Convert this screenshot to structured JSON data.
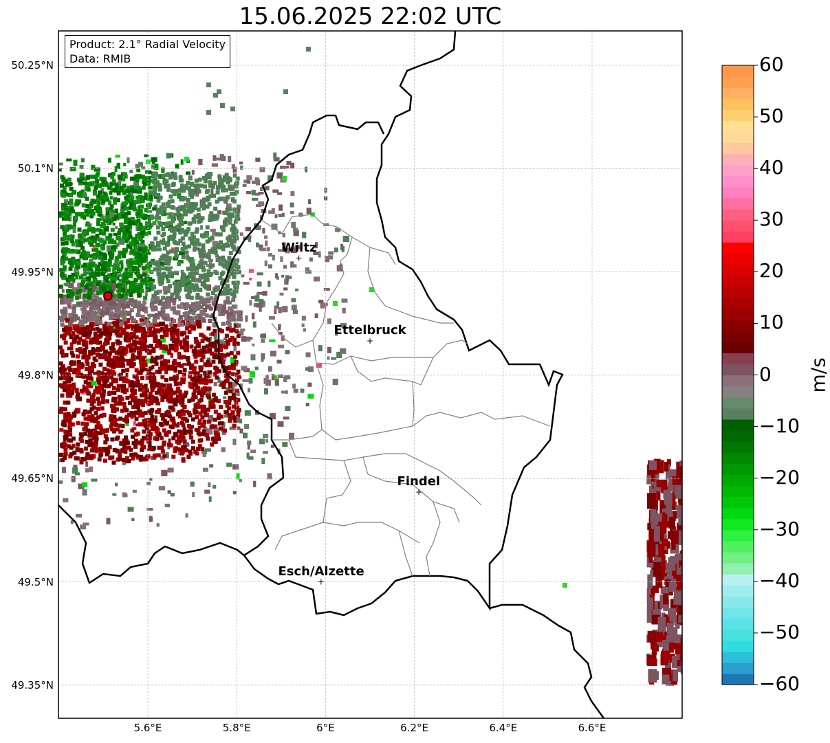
{
  "title": "15.06.2025 22:02 UTC",
  "info": {
    "product": "Product: 2.1° Radial Velocity",
    "data": "Data: RMIB"
  },
  "lat_ticks": [
    "50.25°N",
    "50.1°N",
    "49.95°N",
    "49.8°N",
    "49.65°N",
    "49.5°N",
    "49.35°N"
  ],
  "lon_ticks": [
    "5.6°E",
    "5.8°E",
    "6°E",
    "6.2°E",
    "6.4°E",
    "6.6°E"
  ],
  "cities": [
    {
      "name": "Wiltz",
      "lon": 5.94,
      "lat": 49.97
    },
    {
      "name": "Ettelbruck",
      "lon": 6.1,
      "lat": 49.85
    },
    {
      "name": "Findel",
      "lon": 6.21,
      "lat": 49.63
    },
    {
      "name": "Esch/Alzette",
      "lon": 5.99,
      "lat": 49.5
    }
  ],
  "radar_site": {
    "lon": 5.51,
    "lat": 49.915
  },
  "colorbar": {
    "label": "m/s",
    "min": -60,
    "max": 60,
    "ticks": [
      "60",
      "50",
      "40",
      "30",
      "20",
      "10",
      "0",
      "−10",
      "−20",
      "−30",
      "−40",
      "−50",
      "−60"
    ],
    "colors": [
      "#1f77b4",
      "#2a9fd0",
      "#2bc0d8",
      "#30dde0",
      "#48e0e0",
      "#5ae2e4",
      "#70e5e8",
      "#88e8ec",
      "#a0ecef",
      "#b8f0f0",
      "#90f0b0",
      "#70f080",
      "#50f060",
      "#30f040",
      "#10e820",
      "#00d810",
      "#00c808",
      "#00b800",
      "#00a800",
      "#009800",
      "#008800",
      "#007800",
      "#006800",
      "#006000",
      "#5a8060",
      "#668a6a",
      "#888080",
      "#8a7078",
      "#7d5460",
      "#884050",
      "#6a0000",
      "#7a0000",
      "#8a0000",
      "#9a0000",
      "#aa0000",
      "#bb0000",
      "#cc0000",
      "#dd0000",
      "#ee0000",
      "#ff0000",
      "#ff4060",
      "#ff5070",
      "#ff6080",
      "#ff70a0",
      "#ff80c0",
      "#ff90d0",
      "#ffa0c8",
      "#ffb0b8",
      "#ffc8a0",
      "#ffd898",
      "#ffe090",
      "#ffd070",
      "#ffc060",
      "#ffb060",
      "#ffa050",
      "#ff9848"
    ]
  }
}
